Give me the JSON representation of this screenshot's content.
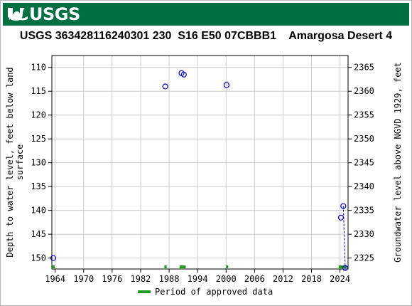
{
  "header": {
    "logo_text": "USGS",
    "logo_icon": "usgs-wave-icon",
    "brand_color": "#006f41"
  },
  "chart_data": {
    "type": "scatter",
    "title": "USGS 363428116240301 230  S16 E50 07CBBB1    Amargosa Desert 4",
    "ylabel_left": "Depth to water level, feet below land surface",
    "ylabel_right": "Groundwater level above NGVD 1929, feet",
    "xlim": [
      1963.3,
      2025.7
    ],
    "ylim_left": [
      152.3,
      107.5
    ],
    "ylim_right": [
      2322.7,
      2367.5
    ],
    "x_ticks": [
      1964,
      1970,
      1976,
      1982,
      1988,
      1994,
      2000,
      2006,
      2012,
      2018,
      2024
    ],
    "x_tick_labels": [
      "1964",
      "1970",
      "1976",
      "1982",
      "1988",
      "1994",
      "2000",
      "2006",
      "2012",
      "2018",
      "2024"
    ],
    "y_ticks_left": [
      110,
      115,
      120,
      125,
      130,
      135,
      140,
      145,
      150
    ],
    "y_ticks_right": [
      2325,
      2330,
      2335,
      2340,
      2345,
      2350,
      2355,
      2360,
      2365
    ],
    "grid": true,
    "series": [
      {
        "marker": "open-circle",
        "color": "#0000cc",
        "x": [
          1963.6,
          1987.2,
          1990.6,
          1991.1,
          2000.1,
          2024.2,
          2024.7,
          2025.1
        ],
        "y": [
          150.0,
          114.0,
          111.2,
          111.5,
          113.7,
          141.5,
          139.1,
          152.1
        ]
      }
    ],
    "dashed_segment": {
      "x": [
        2024.7,
        2025.1
      ],
      "y": [
        139.1,
        152.1
      ]
    },
    "approved_periods": [
      [
        1963.3,
        1963.9
      ],
      [
        1987.0,
        1987.5
      ],
      [
        1990.2,
        1991.5
      ],
      [
        2000.0,
        2000.4
      ],
      [
        2023.7,
        2025.4
      ]
    ],
    "period_color": "#1c9a1c",
    "legend": {
      "label": "Period of approved data",
      "position": "bottom-center"
    }
  }
}
